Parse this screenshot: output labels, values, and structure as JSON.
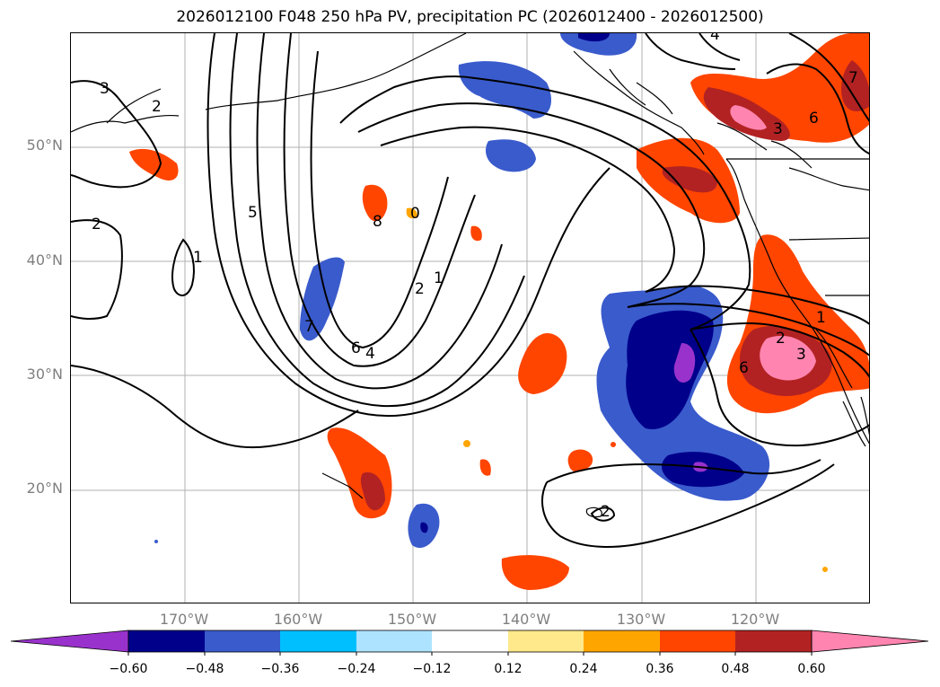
{
  "title": "2026012100 F048 250 hPa PV, precipitation PC (2026012400 - 2026012500)",
  "map": {
    "lon_range": [
      -180,
      -110
    ],
    "lat_range": [
      10,
      60
    ],
    "lat_ticks": [
      {
        "lat": 50,
        "label": "50°N"
      },
      {
        "lat": 40,
        "label": "40°N"
      },
      {
        "lat": 30,
        "label": "30°N"
      },
      {
        "lat": 20,
        "label": "20°N"
      }
    ],
    "lon_ticks": [
      {
        "lon": -170,
        "label": "170°W"
      },
      {
        "lon": -160,
        "label": "160°W"
      },
      {
        "lon": -150,
        "label": "150°W"
      },
      {
        "lon": -140,
        "label": "140°W"
      },
      {
        "lon": -130,
        "label": "130°W"
      },
      {
        "lon": -120,
        "label": "120°W"
      }
    ],
    "gridlines": true
  },
  "contour_labels": [
    "3",
    "2",
    "2",
    "1",
    "5",
    "8",
    "0",
    "7",
    "6",
    "4",
    "2",
    "1",
    "4",
    "7",
    "6",
    "3",
    "6",
    "3",
    "2",
    "1",
    "2"
  ],
  "colorbar": {
    "ticks": [
      "−0.60",
      "−0.48",
      "−0.36",
      "−0.24",
      "−0.12",
      "0.12",
      "0.24",
      "0.36",
      "0.48",
      "0.60"
    ],
    "colors": [
      "#9932cc",
      "#00008b",
      "#3a5bcc",
      "#00bfff",
      "#aee3ff",
      "#ffffff",
      "#ffe98a",
      "#ffa500",
      "#ff4500",
      "#b22222",
      "#ff85b0"
    ]
  }
}
